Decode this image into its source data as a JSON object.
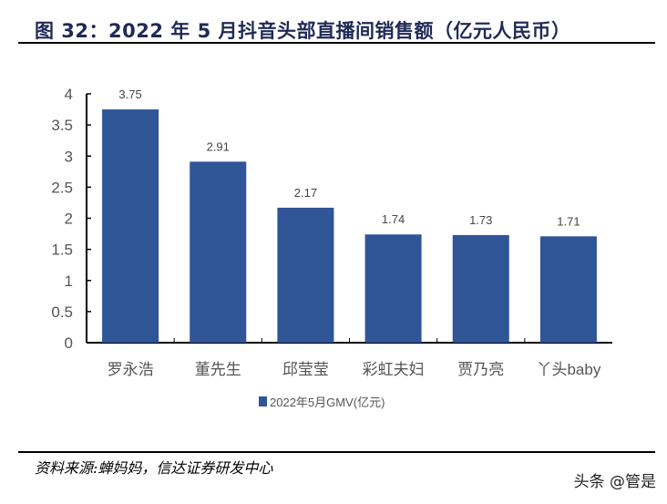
{
  "title": "图  32：2022 年 5 月抖音头部直播间销售额（亿元人民币）",
  "source": "资料来源:蝉妈妈，信达证券研发中心",
  "watermark": "头条 @管是",
  "chart_data": {
    "type": "bar",
    "title": "",
    "xlabel": "",
    "ylabel": "",
    "categories": [
      "罗永浩",
      "董先生",
      "邱莹莹",
      "彩虹夫妇",
      "贾乃亮",
      "丫头baby"
    ],
    "series": [
      {
        "name": "2022年5月GMV(亿元)",
        "values": [
          3.75,
          2.91,
          2.17,
          1.74,
          1.73,
          1.71
        ],
        "color": "#2f5597"
      }
    ],
    "data_labels": [
      "3.75",
      "2.91",
      "2.17",
      "1.74",
      "1.73",
      "1.71"
    ],
    "ylim": [
      0,
      4
    ],
    "yticks": [
      "0",
      "0.5",
      "1",
      "1.5",
      "2",
      "2.5",
      "3",
      "3.5",
      "4"
    ],
    "grid": false,
    "legend": "bottom"
  }
}
